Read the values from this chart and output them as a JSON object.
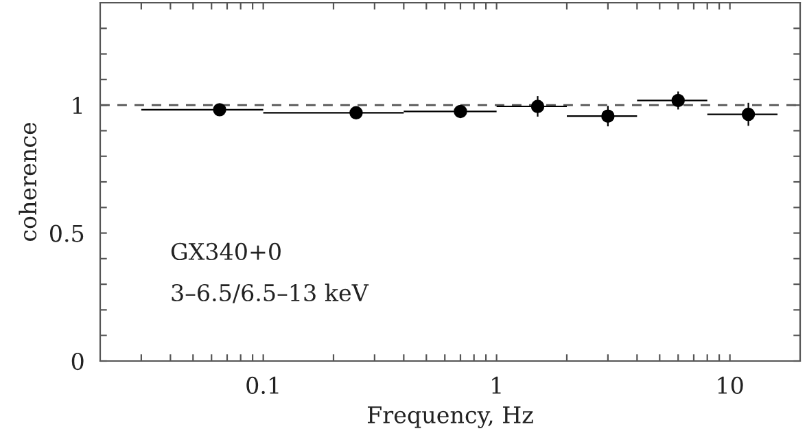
{
  "chart_data": {
    "type": "scatter",
    "xlabel": "Frequency, Hz",
    "ylabel": "coherence",
    "log": "x",
    "x": [
      0.065,
      0.25,
      0.7,
      1.5,
      3.0,
      6.0,
      12
    ],
    "series": [
      {
        "color": "#000000",
        "values": [
          0.982,
          0.97,
          0.975,
          0.995,
          0.957,
          1.018,
          0.964
        ],
        "errors": [
          null,
          null,
          0.015,
          0.04,
          0.04,
          0.035,
          0.045
        ],
        "xerrors": [
          [
            0.03,
            0.1
          ],
          [
            0.1,
            0.4
          ],
          [
            0.4,
            1.0
          ],
          [
            1.0,
            2.0
          ],
          [
            2.0,
            4.0
          ],
          [
            4.0,
            8.0
          ],
          [
            8.0,
            16
          ]
        ]
      }
    ],
    "marker": "circle",
    "grid": false,
    "xlim": [
      0.02,
      20
    ],
    "ylim": [
      0,
      1.4
    ],
    "xticks": [
      {
        "value": 0.03,
        "label": null
      },
      {
        "value": 0.04,
        "label": null
      },
      {
        "value": 0.05,
        "label": null
      },
      {
        "value": 0.06,
        "label": null
      },
      {
        "value": 0.07,
        "label": null
      },
      {
        "value": 0.08,
        "label": null
      },
      {
        "value": 0.09,
        "label": null
      },
      0.1,
      {
        "value": 0.2,
        "label": null
      },
      {
        "value": 0.3,
        "label": null
      },
      {
        "value": 0.4,
        "label": null
      },
      {
        "value": 0.5,
        "label": null
      },
      {
        "value": 0.6,
        "label": null
      },
      {
        "value": 0.7,
        "label": null
      },
      {
        "value": 0.8,
        "label": null
      },
      {
        "value": 0.9,
        "label": null
      },
      1,
      {
        "value": 2,
        "label": null
      },
      {
        "value": 3,
        "label": null
      },
      {
        "value": 4,
        "label": null
      },
      {
        "value": 5,
        "label": null
      },
      {
        "value": 6,
        "label": null
      },
      {
        "value": 7,
        "label": null
      },
      {
        "value": 8,
        "label": null
      },
      {
        "value": 9,
        "label": null
      },
      10
    ],
    "yticks": [
      0,
      {
        "value": 0.1,
        "label": null
      },
      {
        "value": 0.2,
        "label": null
      },
      {
        "value": 0.3,
        "label": null
      },
      {
        "value": 0.4,
        "label": null
      },
      0.5,
      {
        "value": 0.6,
        "label": null
      },
      {
        "value": 0.7,
        "label": null
      },
      {
        "value": 0.8,
        "label": null
      },
      {
        "value": 0.9,
        "label": null
      },
      1,
      {
        "value": 1.1,
        "label": null
      },
      {
        "value": 1.2,
        "label": null
      },
      {
        "value": 1.3,
        "label": null
      }
    ],
    "ref_lines": [
      {
        "axis": "y",
        "value": 1,
        "color": "#555555",
        "line_style": "dashed"
      }
    ],
    "annotations": [
      "GX340+0",
      "3–6.5/6.5–13 keV"
    ]
  }
}
